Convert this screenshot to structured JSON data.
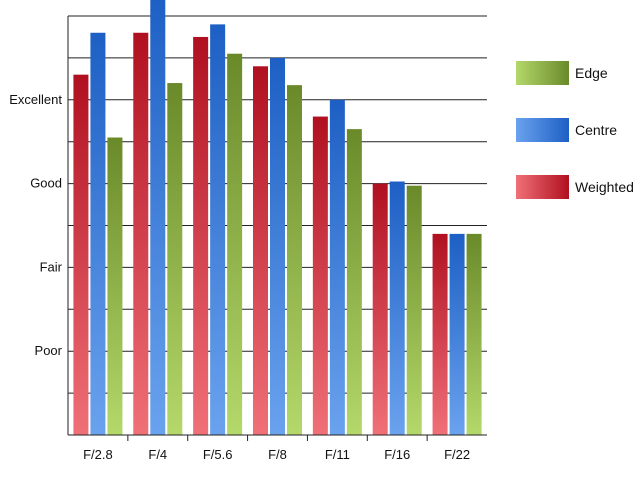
{
  "chart_data": {
    "type": "bar",
    "title": "",
    "xlabel": "",
    "ylabel": "",
    "categories": [
      "F/2.8",
      "F/4",
      "F/5.6",
      "F/8",
      "F/11",
      "F/16",
      "F/22"
    ],
    "y_ticks": [
      {
        "label": "Poor",
        "value": 2
      },
      {
        "label": "Fair",
        "value": 4
      },
      {
        "label": "Good",
        "value": 6
      },
      {
        "label": "Excellent",
        "value": 8
      }
    ],
    "ylim": [
      0,
      10
    ],
    "grid": "horizontal",
    "legend_position": "right",
    "series": [
      {
        "name": "Weighted",
        "color_light": "#f07078",
        "color_dark": "#b01020",
        "values": [
          8.6,
          9.6,
          9.5,
          8.8,
          7.6,
          6.0,
          4.8
        ]
      },
      {
        "name": "Centre",
        "color_light": "#6aa2ee",
        "color_dark": "#1d5fc4",
        "values": [
          9.6,
          10.5,
          9.8,
          9.0,
          8.0,
          6.05,
          4.8
        ]
      },
      {
        "name": "Edge",
        "color_light": "#b4d86a",
        "color_dark": "#6a8a2a",
        "values": [
          7.1,
          8.4,
          9.1,
          8.35,
          7.3,
          5.95,
          4.8
        ]
      }
    ],
    "legend_order": [
      "Edge",
      "Centre",
      "Weighted"
    ]
  }
}
